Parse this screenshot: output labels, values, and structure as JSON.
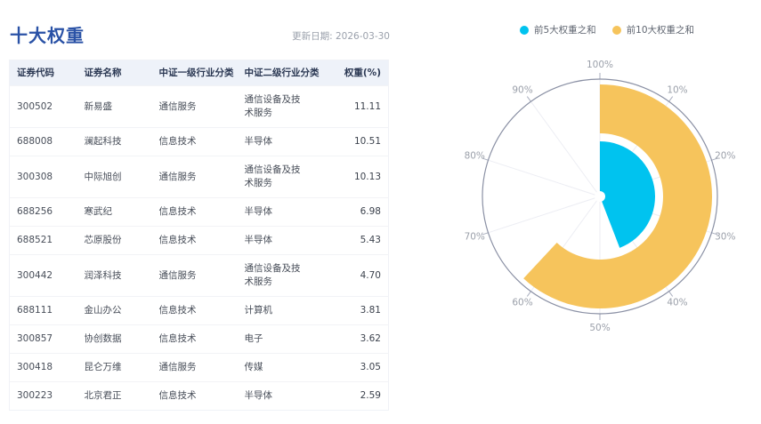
{
  "page": {
    "title": "十大权重",
    "update_date": "更新日期: 2026-03-30"
  },
  "table": {
    "headers": [
      "证券代码",
      "证券名称",
      "中证一级行业分类",
      "中证二级行业分类",
      "权重(%)"
    ],
    "rows": [
      {
        "code": "300502",
        "name": "新易盛",
        "industry1": "通信服务",
        "industry2": "通信设备及技术服务",
        "weight": "11.11"
      },
      {
        "code": "688008",
        "name": "澜起科技",
        "industry1": "信息技术",
        "industry2": "半导体",
        "weight": "10.51"
      },
      {
        "code": "300308",
        "name": "中际旭创",
        "industry1": "通信服务",
        "industry2": "通信设备及技术服务",
        "weight": "10.13"
      },
      {
        "code": "688256",
        "name": "寒武纪",
        "industry1": "信息技术",
        "industry2": "半导体",
        "weight": "6.98"
      },
      {
        "code": "688521",
        "name": "芯原股份",
        "industry1": "信息技术",
        "industry2": "半导体",
        "weight": "5.43"
      },
      {
        "code": "300442",
        "name": "润泽科技",
        "industry1": "通信服务",
        "industry2": "通信设备及技术服务",
        "weight": "4.70"
      },
      {
        "code": "688111",
        "name": "金山办公",
        "industry1": "信息技术",
        "industry2": "计算机",
        "weight": "3.81"
      },
      {
        "code": "300857",
        "name": "协创数据",
        "industry1": "信息技术",
        "industry2": "电子",
        "weight": "3.62"
      },
      {
        "code": "300418",
        "name": "昆仑万维",
        "industry1": "通信服务",
        "industry2": "传媒",
        "weight": "3.05"
      },
      {
        "code": "300223",
        "name": "北京君正",
        "industry1": "信息技术",
        "industry2": "半导体",
        "weight": "2.59"
      }
    ]
  },
  "chart_data": {
    "type": "bar",
    "coordinate": "polar",
    "title": "",
    "legend_position": "top-right",
    "angle_axis": {
      "min": 0,
      "max": 100,
      "unit": "%",
      "clockwise": true,
      "start_at_top": true,
      "tick_labels": [
        "100%",
        "10%",
        "20%",
        "30%",
        "40%",
        "50%",
        "60%",
        "70%",
        "80%",
        "90%"
      ]
    },
    "series": [
      {
        "name": "前5大权重之和",
        "value": 44.16,
        "color": "#00C3EF",
        "ring": "inner"
      },
      {
        "name": "前10大权重之和",
        "value": 61.93,
        "color": "#F6C45C",
        "ring": "outer"
      }
    ],
    "colors": {
      "axis_circle": "#8A90A4",
      "split_line": "#ECEDF3",
      "axis_tick": "#A9AEBE",
      "tick_label": "#9BA0AA"
    }
  }
}
